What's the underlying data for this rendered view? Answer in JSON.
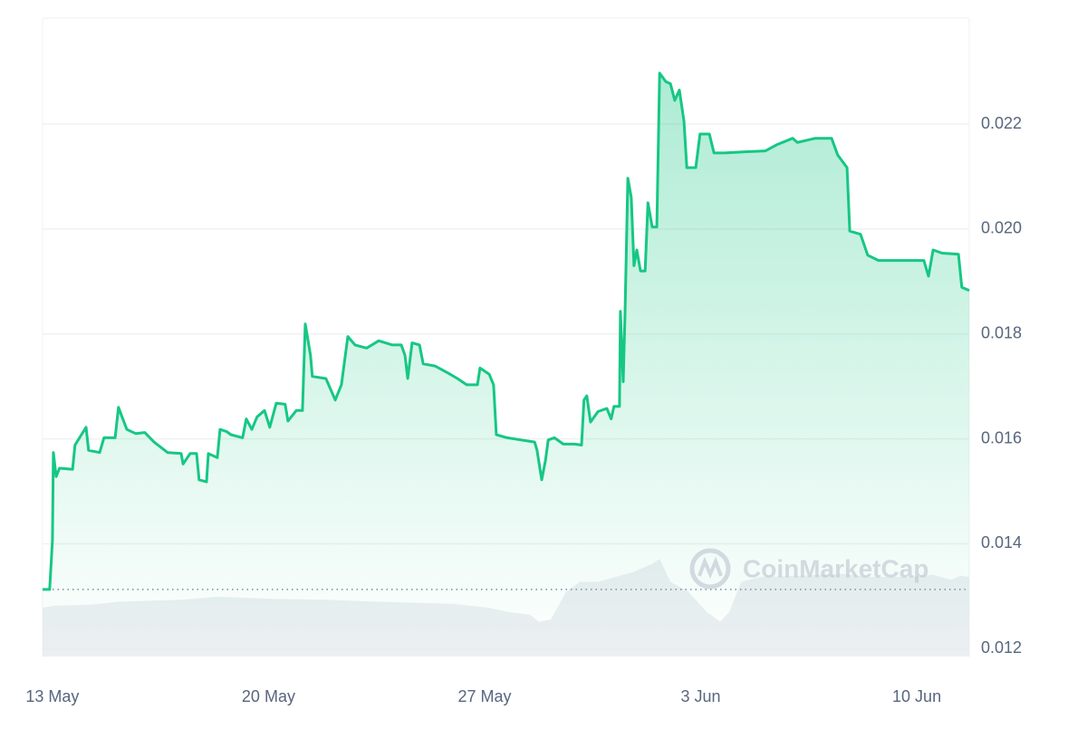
{
  "chart_data": {
    "type": "line",
    "watermark": "CoinMarketCap",
    "xlim": [
      -0.32,
      29.7
    ],
    "xticks": [
      {
        "value": 0,
        "label": "13 May"
      },
      {
        "value": 7,
        "label": "20 May"
      },
      {
        "value": 14,
        "label": "27 May"
      },
      {
        "value": 21,
        "label": "3 Jun"
      },
      {
        "value": 28,
        "label": "10 Jun"
      }
    ],
    "ylim": [
      0.01185,
      0.02402
    ],
    "yticks": [
      0.012,
      0.014,
      0.016,
      0.018,
      {
        "value": 0.02,
        "label": "0.020"
      },
      0.022
    ],
    "y2lim": [
      0,
      641
    ],
    "grid": true,
    "series": [
      {
        "name": "Price",
        "color": "#16c784",
        "x": [
          -0.32,
          -0.09,
          0.0,
          0.03,
          0.12,
          0.23,
          0.65,
          0.73,
          1.09,
          1.17,
          1.53,
          1.67,
          2.03,
          2.14,
          2.41,
          2.7,
          2.99,
          3.29,
          3.73,
          4.17,
          4.23,
          4.46,
          4.67,
          4.75,
          4.99,
          5.05,
          5.34,
          5.43,
          5.64,
          5.78,
          6.16,
          6.28,
          6.46,
          6.63,
          6.87,
          7.04,
          7.25,
          7.54,
          7.63,
          7.9,
          8.1,
          8.19,
          8.36,
          8.42,
          8.86,
          9.16,
          9.36,
          9.57,
          9.8,
          10.18,
          10.57,
          11.01,
          11.3,
          11.42,
          11.51,
          11.65,
          11.89,
          12.01,
          12.39,
          12.83,
          13.12,
          13.42,
          13.77,
          13.85,
          14.15,
          14.29,
          14.38,
          14.73,
          15.18,
          15.62,
          15.7,
          15.85,
          15.97,
          16.06,
          16.26,
          16.55,
          16.93,
          17.14,
          17.22,
          17.31,
          17.43,
          17.67,
          17.96,
          18.1,
          18.19,
          18.37,
          18.4,
          18.49,
          18.55,
          18.64,
          18.75,
          18.84,
          18.93,
          19.05,
          19.2,
          19.29,
          19.43,
          19.58,
          19.67,
          19.87,
          20.02,
          20.16,
          20.31,
          20.46,
          20.55,
          20.84,
          20.98,
          21.28,
          21.43,
          21.78,
          22.37,
          23.1,
          23.48,
          23.98,
          24.13,
          24.71,
          25.24,
          25.44,
          25.74,
          25.83,
          26.18,
          26.41,
          26.76,
          27.35,
          28.23,
          28.38,
          28.53,
          28.82,
          29.35,
          29.46,
          29.7
        ],
        "values": [
          0.01313,
          0.01313,
          0.01407,
          0.01574,
          0.01528,
          0.01544,
          0.01542,
          0.01588,
          0.01622,
          0.01578,
          0.01574,
          0.01602,
          0.01602,
          0.0166,
          0.01618,
          0.0161,
          0.01612,
          0.01594,
          0.01574,
          0.01572,
          0.01552,
          0.01572,
          0.01572,
          0.01522,
          0.01518,
          0.01572,
          0.01564,
          0.01618,
          0.01614,
          0.01608,
          0.01602,
          0.01638,
          0.01618,
          0.01642,
          0.01654,
          0.01622,
          0.01668,
          0.01666,
          0.01634,
          0.01654,
          0.01654,
          0.01819,
          0.01759,
          0.01719,
          0.01715,
          0.01674,
          0.01703,
          0.01795,
          0.01779,
          0.01773,
          0.01787,
          0.01779,
          0.01779,
          0.01759,
          0.01715,
          0.01783,
          0.01779,
          0.01743,
          0.01739,
          0.01725,
          0.01715,
          0.01703,
          0.01703,
          0.01735,
          0.01723,
          0.01703,
          0.01608,
          0.01602,
          0.01598,
          0.01594,
          0.01578,
          0.01522,
          0.01558,
          0.01598,
          0.01602,
          0.0159,
          0.0159,
          0.01588,
          0.01674,
          0.01682,
          0.01632,
          0.01652,
          0.01658,
          0.01638,
          0.01662,
          0.01662,
          0.01843,
          0.01709,
          0.01839,
          0.02097,
          0.0206,
          0.0193,
          0.0196,
          0.0192,
          0.0192,
          0.0205,
          0.02004,
          0.02004,
          0.02297,
          0.02281,
          0.02277,
          0.02245,
          0.02265,
          0.02205,
          0.02117,
          0.02117,
          0.02181,
          0.02181,
          0.02145,
          0.02145,
          0.02147,
          0.02149,
          0.02161,
          0.02173,
          0.02165,
          0.02173,
          0.02173,
          0.02141,
          0.02117,
          0.01996,
          0.0199,
          0.0195,
          0.0194,
          0.0194,
          0.0194,
          0.0191,
          0.0196,
          0.01954,
          0.01952,
          0.01889,
          0.01883
        ]
      },
      {
        "name": "Volume",
        "color": "#e6e9ee",
        "axis": "y2",
        "x": [
          -0.32,
          0.06,
          1.23,
          2.11,
          4.17,
          5.34,
          7.1,
          8.86,
          10.63,
          12.97,
          14.15,
          14.73,
          15.47,
          15.76,
          16.14,
          16.64,
          17.08,
          17.67,
          18.25,
          18.84,
          19.43,
          19.67,
          20.02,
          20.6,
          21.19,
          21.63,
          21.93,
          22.31,
          22.95,
          24.13,
          25.59,
          26.47,
          27.65,
          28.53,
          29.12,
          29.41,
          29.7
        ],
        "values": [
          49,
          51,
          52,
          55,
          57,
          60,
          58,
          57,
          55,
          53,
          49,
          45,
          42,
          35,
          37,
          65,
          75,
          75,
          80,
          85,
          93,
          98,
          75,
          65,
          45,
          35,
          45,
          75,
          80,
          81,
          83,
          80,
          80,
          82,
          77,
          81,
          80
        ]
      }
    ]
  }
}
